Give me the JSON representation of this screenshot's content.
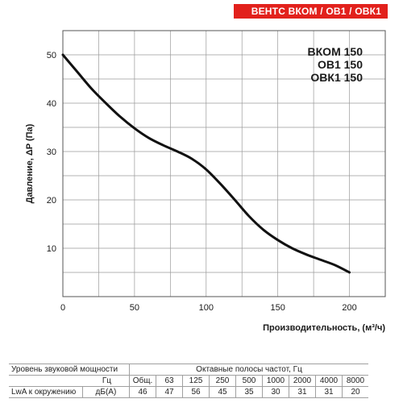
{
  "header": {
    "brand": "ВЕНТС ВКОМ / ОВ1 / ОВК1"
  },
  "colors": {
    "brand_bg": "#e2211c",
    "curve": "#111111",
    "grid": "#9a9a9a"
  },
  "chart_data": {
    "type": "line",
    "xlabel": "Производительность, (м³/ч)",
    "ylabel": "Давление, ΔP (Па)",
    "xlim": [
      0,
      225
    ],
    "ylim": [
      0,
      55
    ],
    "x_ticks": [
      0,
      50,
      100,
      150,
      200
    ],
    "y_ticks": [
      0,
      10,
      20,
      30,
      40,
      50
    ],
    "grid": true,
    "models": [
      "ВКОМ 150",
      "ОВ1 150",
      "ОВК1 150"
    ],
    "series": [
      {
        "x": [
          0,
          10,
          20,
          30,
          40,
          50,
          60,
          70,
          80,
          90,
          100,
          110,
          120,
          130,
          140,
          150,
          160,
          170,
          180,
          190,
          200
        ],
        "values": [
          50,
          46.5,
          43,
          40,
          37.2,
          34.8,
          32.8,
          31.3,
          30,
          28.5,
          26.3,
          23.3,
          20,
          16.6,
          13.8,
          11.7,
          10,
          8.7,
          7.6,
          6.5,
          5
        ]
      }
    ]
  },
  "sound_table": {
    "title": "Уровень звуковой мощности",
    "bands_title": "Октавные полосы частот, Гц",
    "hz_unit": "Гц",
    "row_label": "LwA к окружению",
    "row_unit": "дБ(А)",
    "headers": [
      "Общ.",
      "63",
      "125",
      "250",
      "500",
      "1000",
      "2000",
      "4000",
      "8000"
    ],
    "values": [
      "46",
      "47",
      "56",
      "45",
      "35",
      "30",
      "31",
      "31",
      "20"
    ]
  }
}
